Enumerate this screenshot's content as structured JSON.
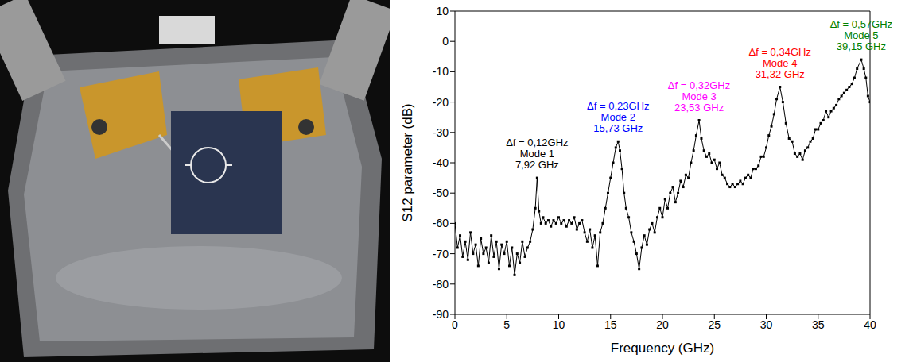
{
  "chart_data": {
    "type": "line",
    "y_label": "S12 parameter (dB)",
    "x_label": "Frequency (GHz)",
    "xlim": [
      0,
      40
    ],
    "xticks": [
      0,
      5,
      10,
      15,
      20,
      25,
      30,
      35,
      40
    ],
    "ylim": [
      -90,
      10
    ],
    "yticks": [
      -90,
      -80,
      -70,
      -60,
      -50,
      -40,
      -30,
      -20,
      -10,
      0,
      10
    ],
    "grid": false,
    "color": "#000000",
    "marker": "square",
    "line_style": "solid",
    "x": [
      0,
      0.25,
      0.5,
      0.75,
      1.0,
      1.25,
      1.5,
      1.75,
      2.0,
      2.25,
      2.5,
      2.75,
      3.0,
      3.25,
      3.5,
      3.75,
      4.0,
      4.25,
      4.5,
      4.75,
      5.0,
      5.25,
      5.5,
      5.75,
      6.0,
      6.25,
      6.5,
      6.75,
      7.0,
      7.25,
      7.5,
      7.75,
      7.92,
      8.1,
      8.3,
      8.5,
      8.75,
      9.0,
      9.25,
      9.5,
      9.75,
      10.0,
      10.25,
      10.5,
      10.75,
      11.0,
      11.25,
      11.5,
      11.75,
      12.0,
      12.25,
      12.5,
      12.75,
      13.0,
      13.25,
      13.5,
      13.75,
      14.0,
      14.25,
      14.5,
      14.75,
      15.0,
      15.25,
      15.5,
      15.73,
      15.9,
      16.1,
      16.3,
      16.5,
      16.75,
      17.0,
      17.25,
      17.5,
      17.75,
      18.0,
      18.25,
      18.5,
      18.75,
      19.0,
      19.25,
      19.5,
      19.75,
      20.0,
      20.25,
      20.5,
      20.75,
      21.0,
      21.25,
      21.5,
      21.75,
      22.0,
      22.25,
      22.5,
      22.75,
      23.0,
      23.25,
      23.53,
      23.75,
      24.0,
      24.25,
      24.5,
      24.75,
      25.0,
      25.25,
      25.5,
      25.75,
      26.0,
      26.25,
      26.5,
      26.75,
      27.0,
      27.25,
      27.5,
      27.75,
      28.0,
      28.25,
      28.5,
      28.75,
      29.0,
      29.25,
      29.5,
      29.75,
      30.0,
      30.25,
      30.5,
      30.75,
      31.0,
      31.32,
      31.6,
      31.9,
      32.2,
      32.5,
      32.75,
      33.0,
      33.25,
      33.5,
      33.75,
      34.0,
      34.25,
      34.5,
      34.75,
      35.0,
      35.25,
      35.5,
      35.75,
      36.0,
      36.25,
      36.5,
      36.75,
      37.0,
      37.25,
      37.5,
      37.75,
      38.0,
      38.25,
      38.5,
      38.75,
      39.15,
      39.4,
      39.6,
      39.8,
      40.0
    ],
    "values": [
      -60,
      -68,
      -64,
      -71,
      -66,
      -72,
      -63,
      -70,
      -67,
      -74,
      -65,
      -70,
      -68,
      -73,
      -64,
      -71,
      -66,
      -75,
      -67,
      -70,
      -66,
      -74,
      -68,
      -77,
      -70,
      -73,
      -66,
      -71,
      -68,
      -66,
      -62,
      -55,
      -45,
      -56,
      -60,
      -58,
      -60,
      -59,
      -61,
      -59,
      -60,
      -58,
      -60,
      -59,
      -61,
      -59,
      -60,
      -58,
      -62,
      -60,
      -59,
      -63,
      -66,
      -62,
      -68,
      -64,
      -74,
      -63,
      -60,
      -55,
      -50,
      -45,
      -40,
      -35,
      -33,
      -36,
      -42,
      -50,
      -55,
      -58,
      -63,
      -66,
      -70,
      -75,
      -68,
      -64,
      -67,
      -62,
      -60,
      -63,
      -58,
      -55,
      -58,
      -52,
      -55,
      -50,
      -48,
      -53,
      -50,
      -46,
      -48,
      -44,
      -45,
      -40,
      -36,
      -31,
      -26,
      -32,
      -36,
      -38,
      -37,
      -40,
      -39,
      -42,
      -40,
      -44,
      -45,
      -47,
      -48,
      -47,
      -48,
      -47,
      -46,
      -47,
      -45,
      -44,
      -45,
      -42,
      -42,
      -41,
      -38,
      -38,
      -35,
      -31,
      -28,
      -24,
      -19,
      -15,
      -20,
      -27,
      -32,
      -33,
      -37,
      -38,
      -37,
      -39,
      -36,
      -35,
      -33,
      -32,
      -29,
      -29,
      -27,
      -26,
      -23,
      -25,
      -23,
      -22,
      -21,
      -19,
      -18,
      -17,
      -16,
      -15,
      -14,
      -12,
      -9,
      -6,
      -9,
      -12,
      -18,
      -20
    ],
    "annotations": [
      {
        "x": 7.92,
        "y": -45,
        "lines": [
          "Δf = 0,12GHz",
          "Mode 1",
          "7,92 GHz"
        ],
        "color": "#000000"
      },
      {
        "x": 15.73,
        "y": -33,
        "lines": [
          "Δf = 0,23GHz",
          "Mode 2",
          "15,73 GHz"
        ],
        "color": "#0000ff"
      },
      {
        "x": 23.53,
        "y": -26,
        "lines": [
          "Δf = 0,32GHz",
          "Mode 3",
          "23,53 GHz"
        ],
        "color": "#ff00ff"
      },
      {
        "x": 31.32,
        "y": -15,
        "lines": [
          "Δf = 0,34GHz",
          "Mode 4",
          "31,32 GHz"
        ],
        "color": "#ff0000"
      },
      {
        "x": 39.15,
        "y": -6,
        "lines": [
          "Δf = 0,57GHz",
          "Mode 5",
          "39,15 GHz"
        ],
        "color": "#008000"
      }
    ]
  }
}
